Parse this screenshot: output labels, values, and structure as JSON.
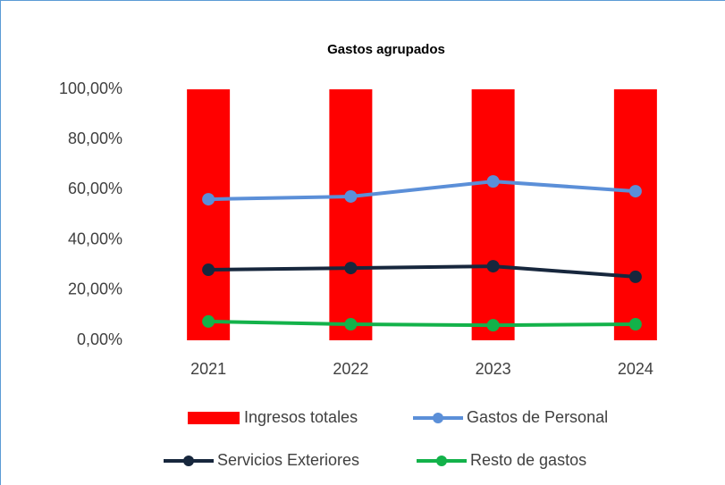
{
  "chart_data": {
    "type": "combo",
    "title": "Gastos agrupados",
    "categories": [
      "2021",
      "2022",
      "2023",
      "2024"
    ],
    "series": [
      {
        "name": "Ingresos totales",
        "type": "bar",
        "color": "#ff0000",
        "values": [
          100,
          100,
          100,
          100
        ]
      },
      {
        "name": "Gastos de Personal",
        "type": "line",
        "color": "#5b8fd8",
        "values": [
          56.2,
          57.3,
          63.3,
          59.4
        ]
      },
      {
        "name": "Servicios Exteriores",
        "type": "line",
        "color": "#17273d",
        "values": [
          28.1,
          28.8,
          29.5,
          25.3
        ]
      },
      {
        "name": "Resto de gastos",
        "type": "line",
        "color": "#13b24a",
        "values": [
          7.5,
          6.4,
          6.0,
          6.4
        ]
      }
    ],
    "ylim": [
      0,
      100
    ],
    "yticks": [
      {
        "value": 0,
        "label": "0,00%"
      },
      {
        "value": 20,
        "label": "20,00%"
      },
      {
        "value": 40,
        "label": "40,00%"
      },
      {
        "value": 60,
        "label": "60,00%"
      },
      {
        "value": 80,
        "label": "80,00%"
      },
      {
        "value": 100,
        "label": "100,00%"
      }
    ],
    "grid": false
  }
}
